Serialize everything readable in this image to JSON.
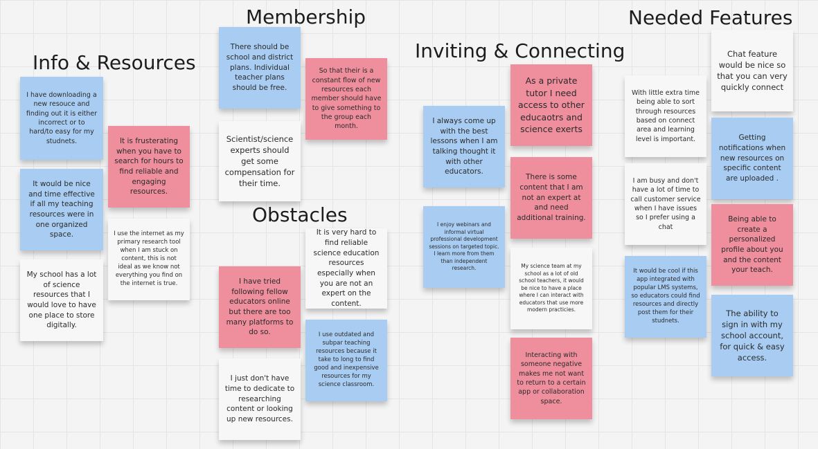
{
  "headings": {
    "info_resources": "Info & Resources",
    "membership": "Membership",
    "obstacles": "Obstacles",
    "inviting_connecting": "Inviting & Connecting",
    "needed_features": "Needed Features"
  },
  "notes": {
    "info1": "I have downloading a new resouce and finding out it is either incorrect or to hard/to easy for my studnets.",
    "info2": "It is frusterating when you have to search for hours to find reliable and engaging resources.",
    "info3": "It would be nice and time effective if all my teaching resources were in one organized space.",
    "info4": "I use the internet as my primary research tool when I am stuck on content, this is not ideal as we know not everything you find on the internet is true.",
    "info5": "My school has a lot of science resources that I would love to have one place to store digitally.",
    "mem1": "There should be school and district plans. Individual teacher plans should be free.",
    "mem2": "So that their is a constant flow of new resources each member should have to give something to the group each month.",
    "mem3": "Scientist/science experts should get some compensation for their time.",
    "obs1": "It is very hard to find reliable science education resources especially when you are not an expert on the content.",
    "obs2": "I have tried following fellow educators online but there are too many platforms to do so.",
    "obs3": "I use outdated and subpar teaching resources because it take to long to find good and inexpensive resources for my science classroom.",
    "obs4": "I just don't have time to dedicate to researching content or looking up new resources.",
    "inv1": "I always come up with the best lessons when I am talking thought it with other educators.",
    "inv2": "As a private tutor I need access to other educaotrs and science exerts",
    "inv3": "There is some content that I am not an expert at and need additional training.",
    "inv4": "I enjoy webinars and informal virtual professional development sessions on targeted topic. I learn more from them than independent research.",
    "inv5": "My science team at my school as a lot of old school teachers, it would be nice to have a place where I can interact with educators that use more modern practicies.",
    "inv6": "Interacting with someone negative makes me not want to return to a certain app or collaboration space.",
    "feat1": "With little extra time being able to sort through resources based on connect area and learning level is important.",
    "feat2": "Chat feature would be nice so that you can very quickly connect",
    "feat3": "Getting notifications when new resources on specific content are uploaded .",
    "feat4": "I am busy and don't have a lot of time to call customer service when I have issues so I prefer using a chat",
    "feat5": "Being able to create a personalized profile about you and the content your teach.",
    "feat6": "It would be cool if this app integrated with popular LMS systems, so educators could find resources and directly post them for their studnets.",
    "feat7": "The ability to sign in with my school account, for quick & easy access."
  },
  "colors": {
    "blue_note": "#a9cdf2",
    "pink_note": "#ef8f9d",
    "white_note": "#f7f7f7",
    "background": "#f4f4f4"
  }
}
